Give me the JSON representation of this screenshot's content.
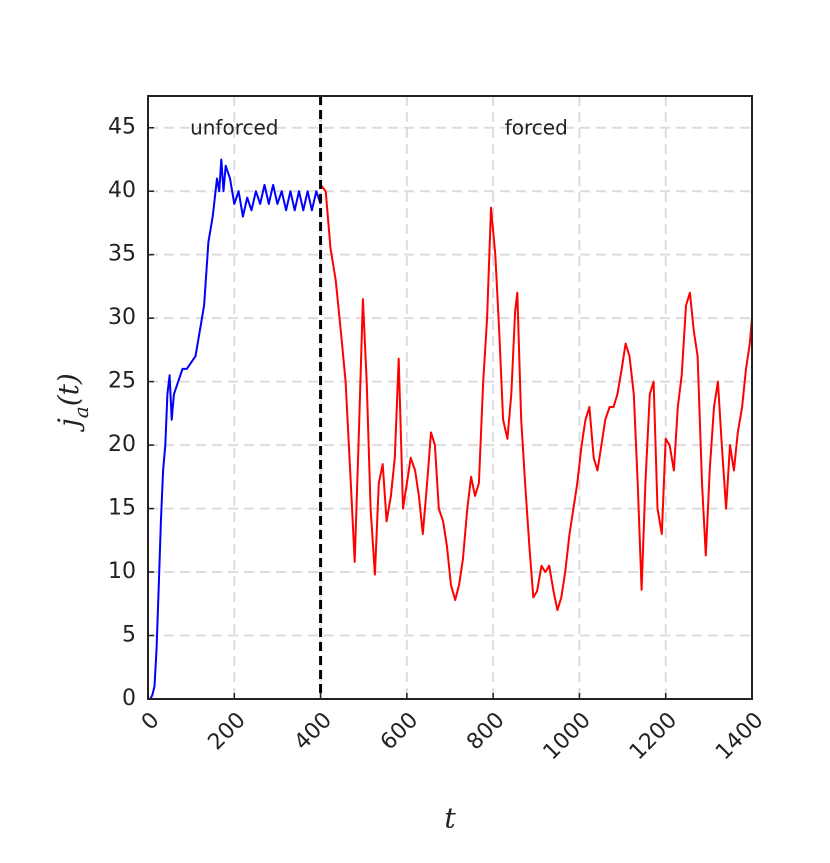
{
  "chart_data": {
    "type": "line",
    "ylabel": {
      "base": "j",
      "sub": "a",
      "tail": "(t)"
    },
    "xlabel": "t",
    "annotations": [
      "unforced",
      "forced"
    ],
    "divider": 400,
    "xlim": [
      0,
      1400
    ],
    "ylim": [
      0,
      47.5
    ],
    "xticks": [
      0,
      200,
      400,
      600,
      800,
      1000,
      1200,
      1400
    ],
    "yticks": [
      0,
      5,
      10,
      15,
      20,
      25,
      30,
      35,
      40,
      45
    ],
    "grid": true,
    "series": [
      {
        "color": "#0000ff",
        "x": [
          0,
          5,
          10,
          15,
          20,
          25,
          30,
          35,
          40,
          45,
          50,
          55,
          60,
          70,
          80,
          90,
          100,
          110,
          120,
          130,
          140,
          150,
          160,
          165,
          170,
          175,
          180,
          190,
          200,
          210,
          220,
          230,
          240,
          250,
          260,
          270,
          280,
          290,
          300,
          310,
          320,
          330,
          340,
          350,
          360,
          370,
          380,
          390,
          400
        ],
        "values": [
          0,
          0,
          0.3,
          1,
          4,
          9,
          14,
          18,
          20,
          24,
          25.5,
          22,
          24,
          25,
          26,
          26,
          26.5,
          27,
          29,
          31,
          36,
          38,
          41,
          40,
          42.5,
          40,
          42,
          41,
          39,
          40,
          38,
          39.5,
          38.5,
          40,
          39,
          40.5,
          39,
          40.5,
          39,
          40,
          38.5,
          40,
          38.5,
          40,
          38.5,
          40,
          38.5,
          40,
          39
        ]
      },
      {
        "color": "#ff0000",
        "x": [
          400,
          412,
          423,
          435,
          447,
          458,
          470,
          479,
          488,
          498,
          507,
          516,
          526,
          535,
          544,
          553,
          563,
          572,
          581,
          591,
          600,
          609,
          619,
          628,
          637,
          647,
          656,
          665,
          674,
          684,
          693,
          702,
          712,
          721,
          730,
          740,
          749,
          758,
          767,
          777,
          786,
          795,
          805,
          814,
          823,
          833,
          842,
          851,
          856,
          865,
          874,
          884,
          893,
          902,
          912,
          921,
          930,
          940,
          949,
          958,
          967,
          977,
          986,
          995,
          1005,
          1014,
          1023,
          1033,
          1042,
          1051,
          1060,
          1070,
          1079,
          1088,
          1098,
          1107,
          1116,
          1126,
          1135,
          1144,
          1153,
          1163,
          1172,
          1181,
          1191,
          1200,
          1209,
          1219,
          1228,
          1237,
          1247,
          1256,
          1265,
          1274,
          1284,
          1293,
          1302,
          1312,
          1321,
          1330,
          1340,
          1349,
          1358,
          1367,
          1377,
          1386,
          1395,
          1400
        ],
        "values": [
          40.5,
          40,
          35.5,
          33,
          29,
          25,
          17,
          10.8,
          20,
          31.5,
          25,
          15,
          9.8,
          17,
          18.5,
          14,
          16,
          19,
          26.8,
          15,
          17,
          19,
          18,
          16,
          13,
          17,
          21,
          20,
          15,
          14,
          12,
          9,
          7.8,
          9,
          11,
          15,
          17.5,
          16,
          17,
          25,
          30,
          38.7,
          35,
          29,
          22,
          20.5,
          24,
          30.5,
          32,
          22,
          17,
          12,
          8,
          8.5,
          10.5,
          10,
          10.5,
          8.5,
          7,
          8,
          10,
          13,
          15,
          17,
          20,
          22,
          23,
          19,
          18,
          20,
          22,
          23,
          23,
          24,
          26,
          28,
          27,
          24,
          17,
          8.6,
          17,
          24,
          25,
          15,
          13,
          20.5,
          20,
          18,
          23,
          25.5,
          31,
          32,
          29,
          27,
          17,
          11.3,
          18,
          23,
          25,
          20,
          15,
          20,
          18,
          21,
          23,
          26,
          28,
          30
        ]
      }
    ]
  }
}
